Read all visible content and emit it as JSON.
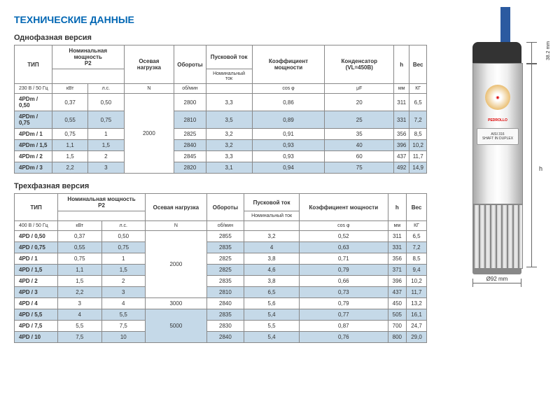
{
  "title": "ТЕХНИЧЕСКИЕ ДАННЫЕ",
  "table1": {
    "title": "Однофазная версия",
    "headers": {
      "type": "ТИП",
      "power": "Номинальная мощность",
      "p2": "P2",
      "axial": "Осевая нагрузка",
      "rpm": "Обороты",
      "start_current": "Пусковой ток",
      "nom_current": "Номинальный ток",
      "pf": "Коэффициент мощности",
      "cap": "Конденсатор (VL=450B)",
      "h": "h",
      "weight": "Вес"
    },
    "voltage": "230 В / 50 Гц",
    "units": {
      "kw": "кВт",
      "hp": "л.c.",
      "n": "N",
      "rpm": "об/мин",
      "cos": "cos φ",
      "uf": "μF",
      "mm": "мм",
      "kg": "КГ"
    },
    "rows": [
      {
        "type": "4PDm / 0,50",
        "kw": "0,37",
        "hp": "0,50",
        "rpm": "2800",
        "ratio": "3,3",
        "cos": "0,86",
        "cap": "20",
        "h": "311",
        "kg": "6,5"
      },
      {
        "type": "4PDm / 0,75",
        "kw": "0,55",
        "hp": "0,75",
        "rpm": "2810",
        "ratio": "3,5",
        "cos": "0,89",
        "cap": "25",
        "h": "331",
        "kg": "7,2"
      },
      {
        "type": "4PDm / 1",
        "kw": "0,75",
        "hp": "1",
        "rpm": "2825",
        "ratio": "3,2",
        "cos": "0,91",
        "cap": "35",
        "h": "356",
        "kg": "8,5"
      },
      {
        "type": "4PDm / 1,5",
        "kw": "1,1",
        "hp": "1,5",
        "rpm": "2840",
        "ratio": "3,2",
        "cos": "0,93",
        "cap": "40",
        "h": "396",
        "kg": "10,2"
      },
      {
        "type": "4PDm / 2",
        "kw": "1,5",
        "hp": "2",
        "rpm": "2845",
        "ratio": "3,3",
        "cos": "0,93",
        "cap": "60",
        "h": "437",
        "kg": "11,7"
      },
      {
        "type": "4PDm / 3",
        "kw": "2,2",
        "hp": "3",
        "rpm": "2820",
        "ratio": "3,1",
        "cos": "0,94",
        "cap": "75",
        "h": "492",
        "kg": "14,9"
      }
    ],
    "axial_load": "2000"
  },
  "table2": {
    "title": "Трехфазная версия",
    "headers": {
      "type": "ТИП",
      "power": "Номинальная мощность",
      "p2": "P2",
      "axial": "Осевая нагрузка",
      "rpm": "Обороты",
      "start_current": "Пусковой ток",
      "nom_current": "Номинальный ток",
      "pf": "Коэффициент мощности",
      "h": "h",
      "weight": "Вес"
    },
    "voltage": "400 В / 50 Гц",
    "units": {
      "kw": "кВт",
      "hp": "л.c.",
      "n": "N",
      "rpm": "об/мин",
      "cos": "cos φ",
      "mm": "мм",
      "kg": "КГ"
    },
    "rows": [
      {
        "type": "4PD / 0,50",
        "kw": "0,37",
        "hp": "0,50",
        "axial": "",
        "rpm": "2855",
        "ratio": "3,2",
        "cos": "0,52",
        "h": "311",
        "kg": "6,5"
      },
      {
        "type": "4PD / 0,75",
        "kw": "0,55",
        "hp": "0,75",
        "axial": "",
        "rpm": "2835",
        "ratio": "4",
        "cos": "0,63",
        "h": "331",
        "kg": "7,2"
      },
      {
        "type": "4PD / 1",
        "kw": "0,75",
        "hp": "1",
        "axial": "",
        "rpm": "2825",
        "ratio": "3,8",
        "cos": "0,71",
        "h": "356",
        "kg": "8,5"
      },
      {
        "type": "4PD / 1,5",
        "kw": "1,1",
        "hp": "1,5",
        "axial": "2000",
        "rpm": "2825",
        "ratio": "4,6",
        "cos": "0,79",
        "h": "371",
        "kg": "9,4"
      },
      {
        "type": "4PD / 2",
        "kw": "1,5",
        "hp": "2",
        "axial": "",
        "rpm": "2835",
        "ratio": "3,8",
        "cos": "0,66",
        "h": "396",
        "kg": "10,2"
      },
      {
        "type": "4PD / 3",
        "kw": "2,2",
        "hp": "3",
        "axial": "",
        "rpm": "2810",
        "ratio": "6,5",
        "cos": "0,73",
        "h": "437",
        "kg": "11,7"
      },
      {
        "type": "4PD / 4",
        "kw": "3",
        "hp": "4",
        "axial": "3000",
        "rpm": "2840",
        "ratio": "5,6",
        "cos": "0,79",
        "h": "450",
        "kg": "13,2"
      },
      {
        "type": "4PD / 5,5",
        "kw": "4",
        "hp": "5,5",
        "axial": "",
        "rpm": "2835",
        "ratio": "5,4",
        "cos": "0,77",
        "h": "505",
        "kg": "16,1"
      },
      {
        "type": "4PD / 7,5",
        "kw": "5,5",
        "hp": "7,5",
        "axial": "5000",
        "rpm": "2830",
        "ratio": "5,5",
        "cos": "0,87",
        "h": "700",
        "kg": "24,7"
      },
      {
        "type": "4PD / 10",
        "kw": "7,5",
        "hp": "10",
        "axial": "",
        "rpm": "2840",
        "ratio": "5,4",
        "cos": "0,76",
        "h": "800",
        "kg": "29,0"
      }
    ]
  },
  "diagram": {
    "brand": "PEDROLLO",
    "plate1": "AISI 316",
    "plate2": "SHAFT IN DUPLEX",
    "width": "Ø92 mm",
    "top_dim": "38.2 mm"
  }
}
